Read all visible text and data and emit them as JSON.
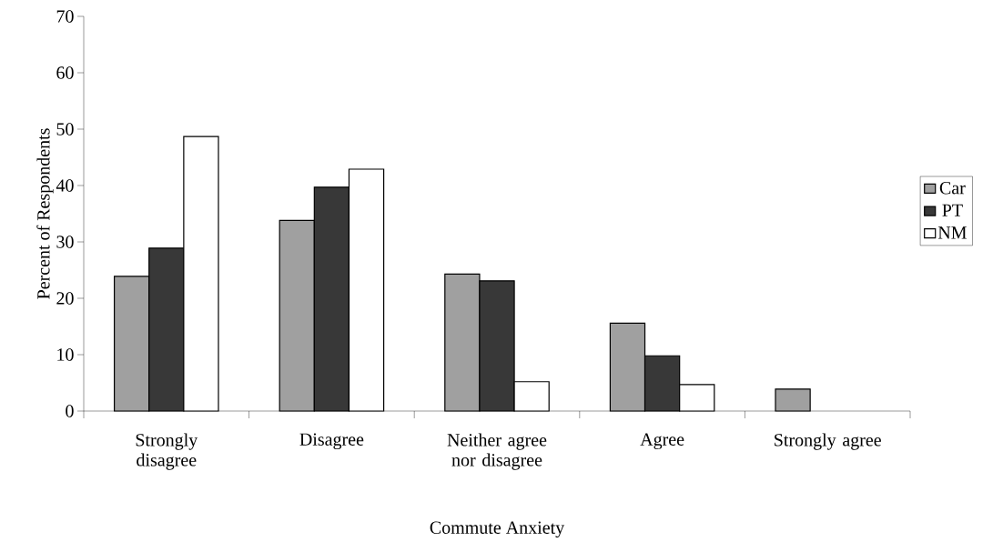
{
  "chart_data": {
    "type": "bar",
    "xlabel": "Commute Anxiety",
    "ylabel": "Percent of Respondents",
    "categories": [
      "Strongly disagree",
      "Disagree",
      "Neither agree nor disagree",
      "Agree",
      "Strongly agree"
    ],
    "series": [
      {
        "name": "Car",
        "color": "#a0a0a0",
        "values": [
          23.9,
          33.8,
          24.3,
          15.6,
          3.9
        ]
      },
      {
        "name": "PT",
        "color": "#383838",
        "values": [
          28.9,
          39.7,
          23.1,
          9.8,
          null
        ]
      },
      {
        "name": "NM",
        "color": "#ffffff",
        "values": [
          48.7,
          42.9,
          5.2,
          4.7,
          null
        ]
      }
    ],
    "ylim": [
      0,
      70
    ],
    "yticks": [
      0,
      10,
      20,
      30,
      40,
      50,
      60,
      70
    ],
    "grid": false,
    "legend": "right"
  }
}
